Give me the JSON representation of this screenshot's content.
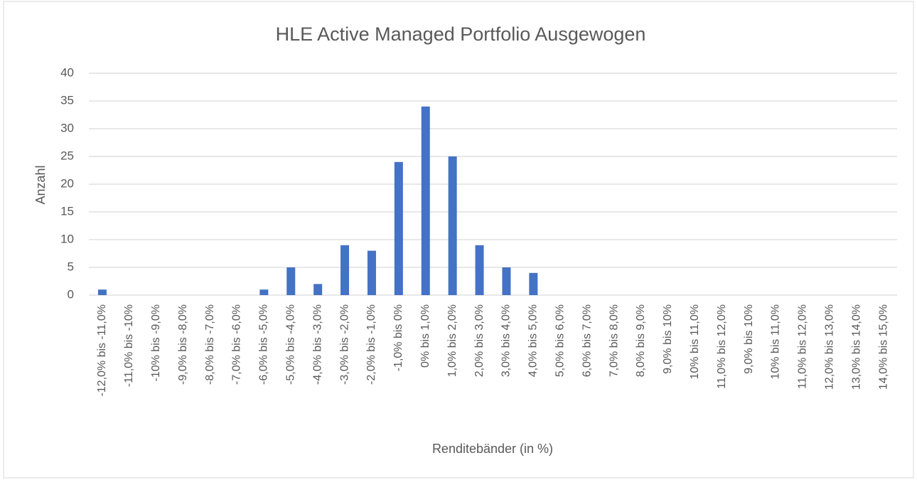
{
  "chart_data": {
    "type": "bar",
    "title": "HLE Active Managed Portfolio Ausgewogen",
    "x_label": "Renditebänder (in %)",
    "y_label": "Anzahl",
    "categories": [
      "-12,0% bis -11,0%",
      "-11,0% bis -10%",
      "-10% bis -9,0%",
      "-9,0% bis -8,0%",
      "-8,0% bis -7,0%",
      "-7,0% bis -6,0%",
      "-6,0% bis -5,0%",
      "-5,0% bis -4,0%",
      "-4,0% bis -3,0%",
      "-3,0% bis -2,0%",
      "-2,0% bis -1,0%",
      "-1,0% bis 0%",
      "0% bis 1,0%",
      "1,0% bis 2,0%",
      "2,0% bis 3,0%",
      "3,0% bis 4,0%",
      "4,0% bis 5,0%",
      "5,0% bis 6,0%",
      "6,0% bis 7,0%",
      "7,0% bis 8,0%",
      "8,0% bis 9,0%",
      "9,0% bis 10%",
      "10% bis 11,0%",
      "11,0% bis 12,0%",
      "9,0% bis 10%",
      "10% bis 11,0%",
      "11,0% bis 12,0%",
      "12,0% bis 13,0%",
      "13,0% bis 14,0%",
      "14,0% bis 15,0%"
    ],
    "values": [
      1,
      0,
      0,
      0,
      0,
      0,
      1,
      5,
      2,
      9,
      8,
      24,
      34,
      25,
      9,
      5,
      4,
      0,
      0,
      0,
      0,
      0,
      0,
      0,
      0,
      0,
      0,
      0,
      0,
      0
    ],
    "color": "#4472c4",
    "ylim": [
      0,
      40
    ],
    "yticks": [
      0,
      5,
      10,
      15,
      20,
      25,
      30,
      35,
      40
    ],
    "grid": true
  }
}
